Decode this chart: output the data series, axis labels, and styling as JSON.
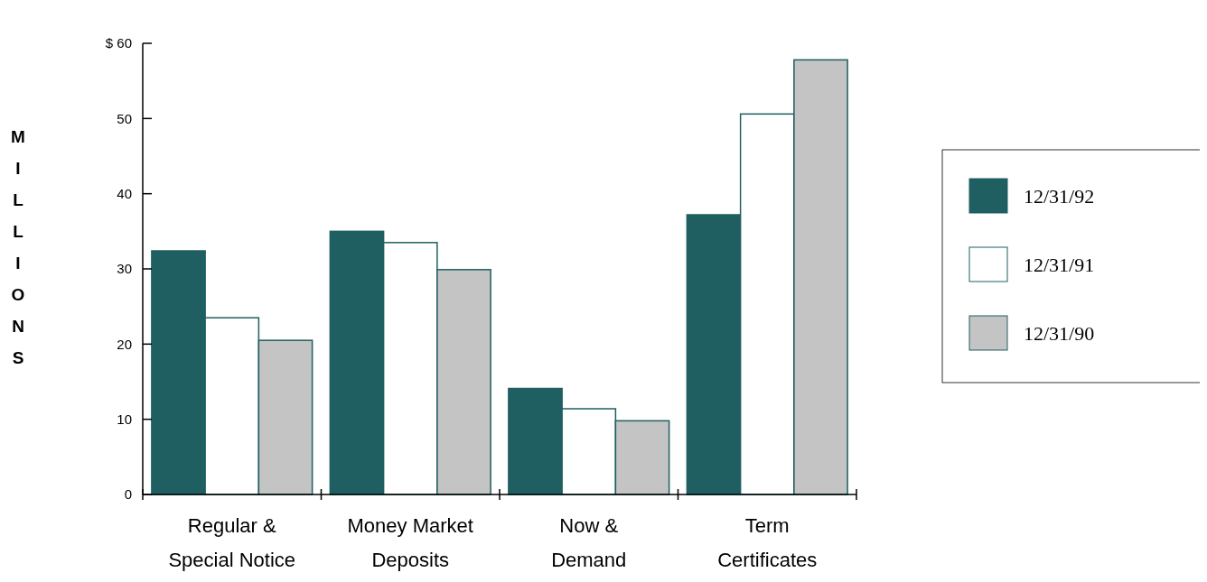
{
  "chart_data": {
    "type": "bar",
    "ylabel": "MILLIONS",
    "categories": [
      "Regular & Special Notice",
      "Money Market Deposits",
      "Now & Demand",
      "Term Certificates"
    ],
    "series": [
      {
        "name": "12/31/92",
        "color": "#1f5f62",
        "values": [
          32.4,
          35.0,
          14.1,
          37.2
        ]
      },
      {
        "name": "12/31/91",
        "color": "#ffffff",
        "values": [
          23.5,
          33.5,
          11.4,
          50.6
        ]
      },
      {
        "name": "12/31/90",
        "color": "#c4c4c4",
        "values": [
          20.5,
          29.9,
          9.8,
          57.8
        ]
      }
    ],
    "ylim": [
      0,
      60
    ],
    "yticks": [
      0,
      10,
      20,
      30,
      40,
      50,
      {
        "value": 60,
        "label": "$ 60"
      }
    ],
    "grid": false,
    "legend": "right"
  }
}
